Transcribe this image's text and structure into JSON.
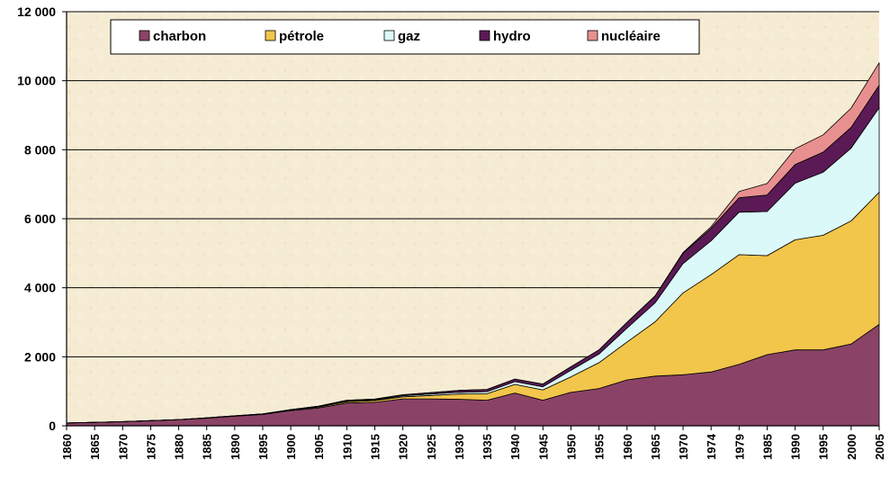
{
  "chart_data": {
    "type": "area",
    "stacked": true,
    "categories": [
      "1860",
      "1865",
      "1870",
      "1875",
      "1880",
      "1885",
      "1890",
      "1895",
      "1900",
      "1905",
      "1910",
      "1915",
      "1920",
      "1925",
      "1930",
      "1935",
      "1940",
      "1945",
      "1950",
      "1955",
      "1960",
      "1965",
      "1970",
      "1974",
      "1979",
      "1985",
      "1990",
      "1995",
      "2000",
      "2005"
    ],
    "series": [
      {
        "name": "charbon",
        "color": "#8a4366",
        "values": [
          80,
          100,
          120,
          150,
          180,
          220,
          280,
          330,
          440,
          520,
          660,
          680,
          780,
          780,
          770,
          740,
          950,
          740,
          970,
          1080,
          1330,
          1440,
          1480,
          1560,
          1780,
          2060,
          2200,
          2200,
          2370,
          2940
        ]
      },
      {
        "name": "pétrole",
        "color": "#f2c54b",
        "values": [
          0,
          0,
          0,
          0,
          0,
          5,
          5,
          10,
          15,
          25,
          40,
          50,
          60,
          100,
          150,
          190,
          250,
          300,
          450,
          750,
          1100,
          1570,
          2370,
          2820,
          3180,
          2870,
          3190,
          3320,
          3570,
          3830
        ]
      },
      {
        "name": "gaz",
        "color": "#dcf9f9",
        "values": [
          0,
          0,
          0,
          0,
          0,
          5,
          5,
          5,
          10,
          15,
          20,
          20,
          30,
          40,
          50,
          60,
          80,
          90,
          190,
          250,
          400,
          550,
          850,
          980,
          1230,
          1280,
          1640,
          1830,
          2110,
          2450
        ]
      },
      {
        "name": "hydro",
        "color": "#5b1a55",
        "values": [
          0,
          0,
          0,
          0,
          0,
          0,
          0,
          0,
          5,
          10,
          20,
          25,
          30,
          40,
          55,
          65,
          75,
          80,
          100,
          120,
          170,
          200,
          300,
          360,
          420,
          480,
          540,
          580,
          600,
          650
        ]
      },
      {
        "name": "nucléaire",
        "color": "#e8908f",
        "values": [
          0,
          0,
          0,
          0,
          0,
          0,
          0,
          0,
          0,
          0,
          0,
          0,
          0,
          0,
          0,
          0,
          0,
          0,
          0,
          0,
          0,
          5,
          20,
          50,
          180,
          330,
          460,
          500,
          560,
          650
        ]
      }
    ],
    "yticks": [
      "0",
      "2 000",
      "4 000",
      "6 000",
      "8 000",
      "10 000",
      "12 000"
    ],
    "ylim": [
      0,
      12000
    ],
    "grid": true,
    "legend_position": "top"
  }
}
